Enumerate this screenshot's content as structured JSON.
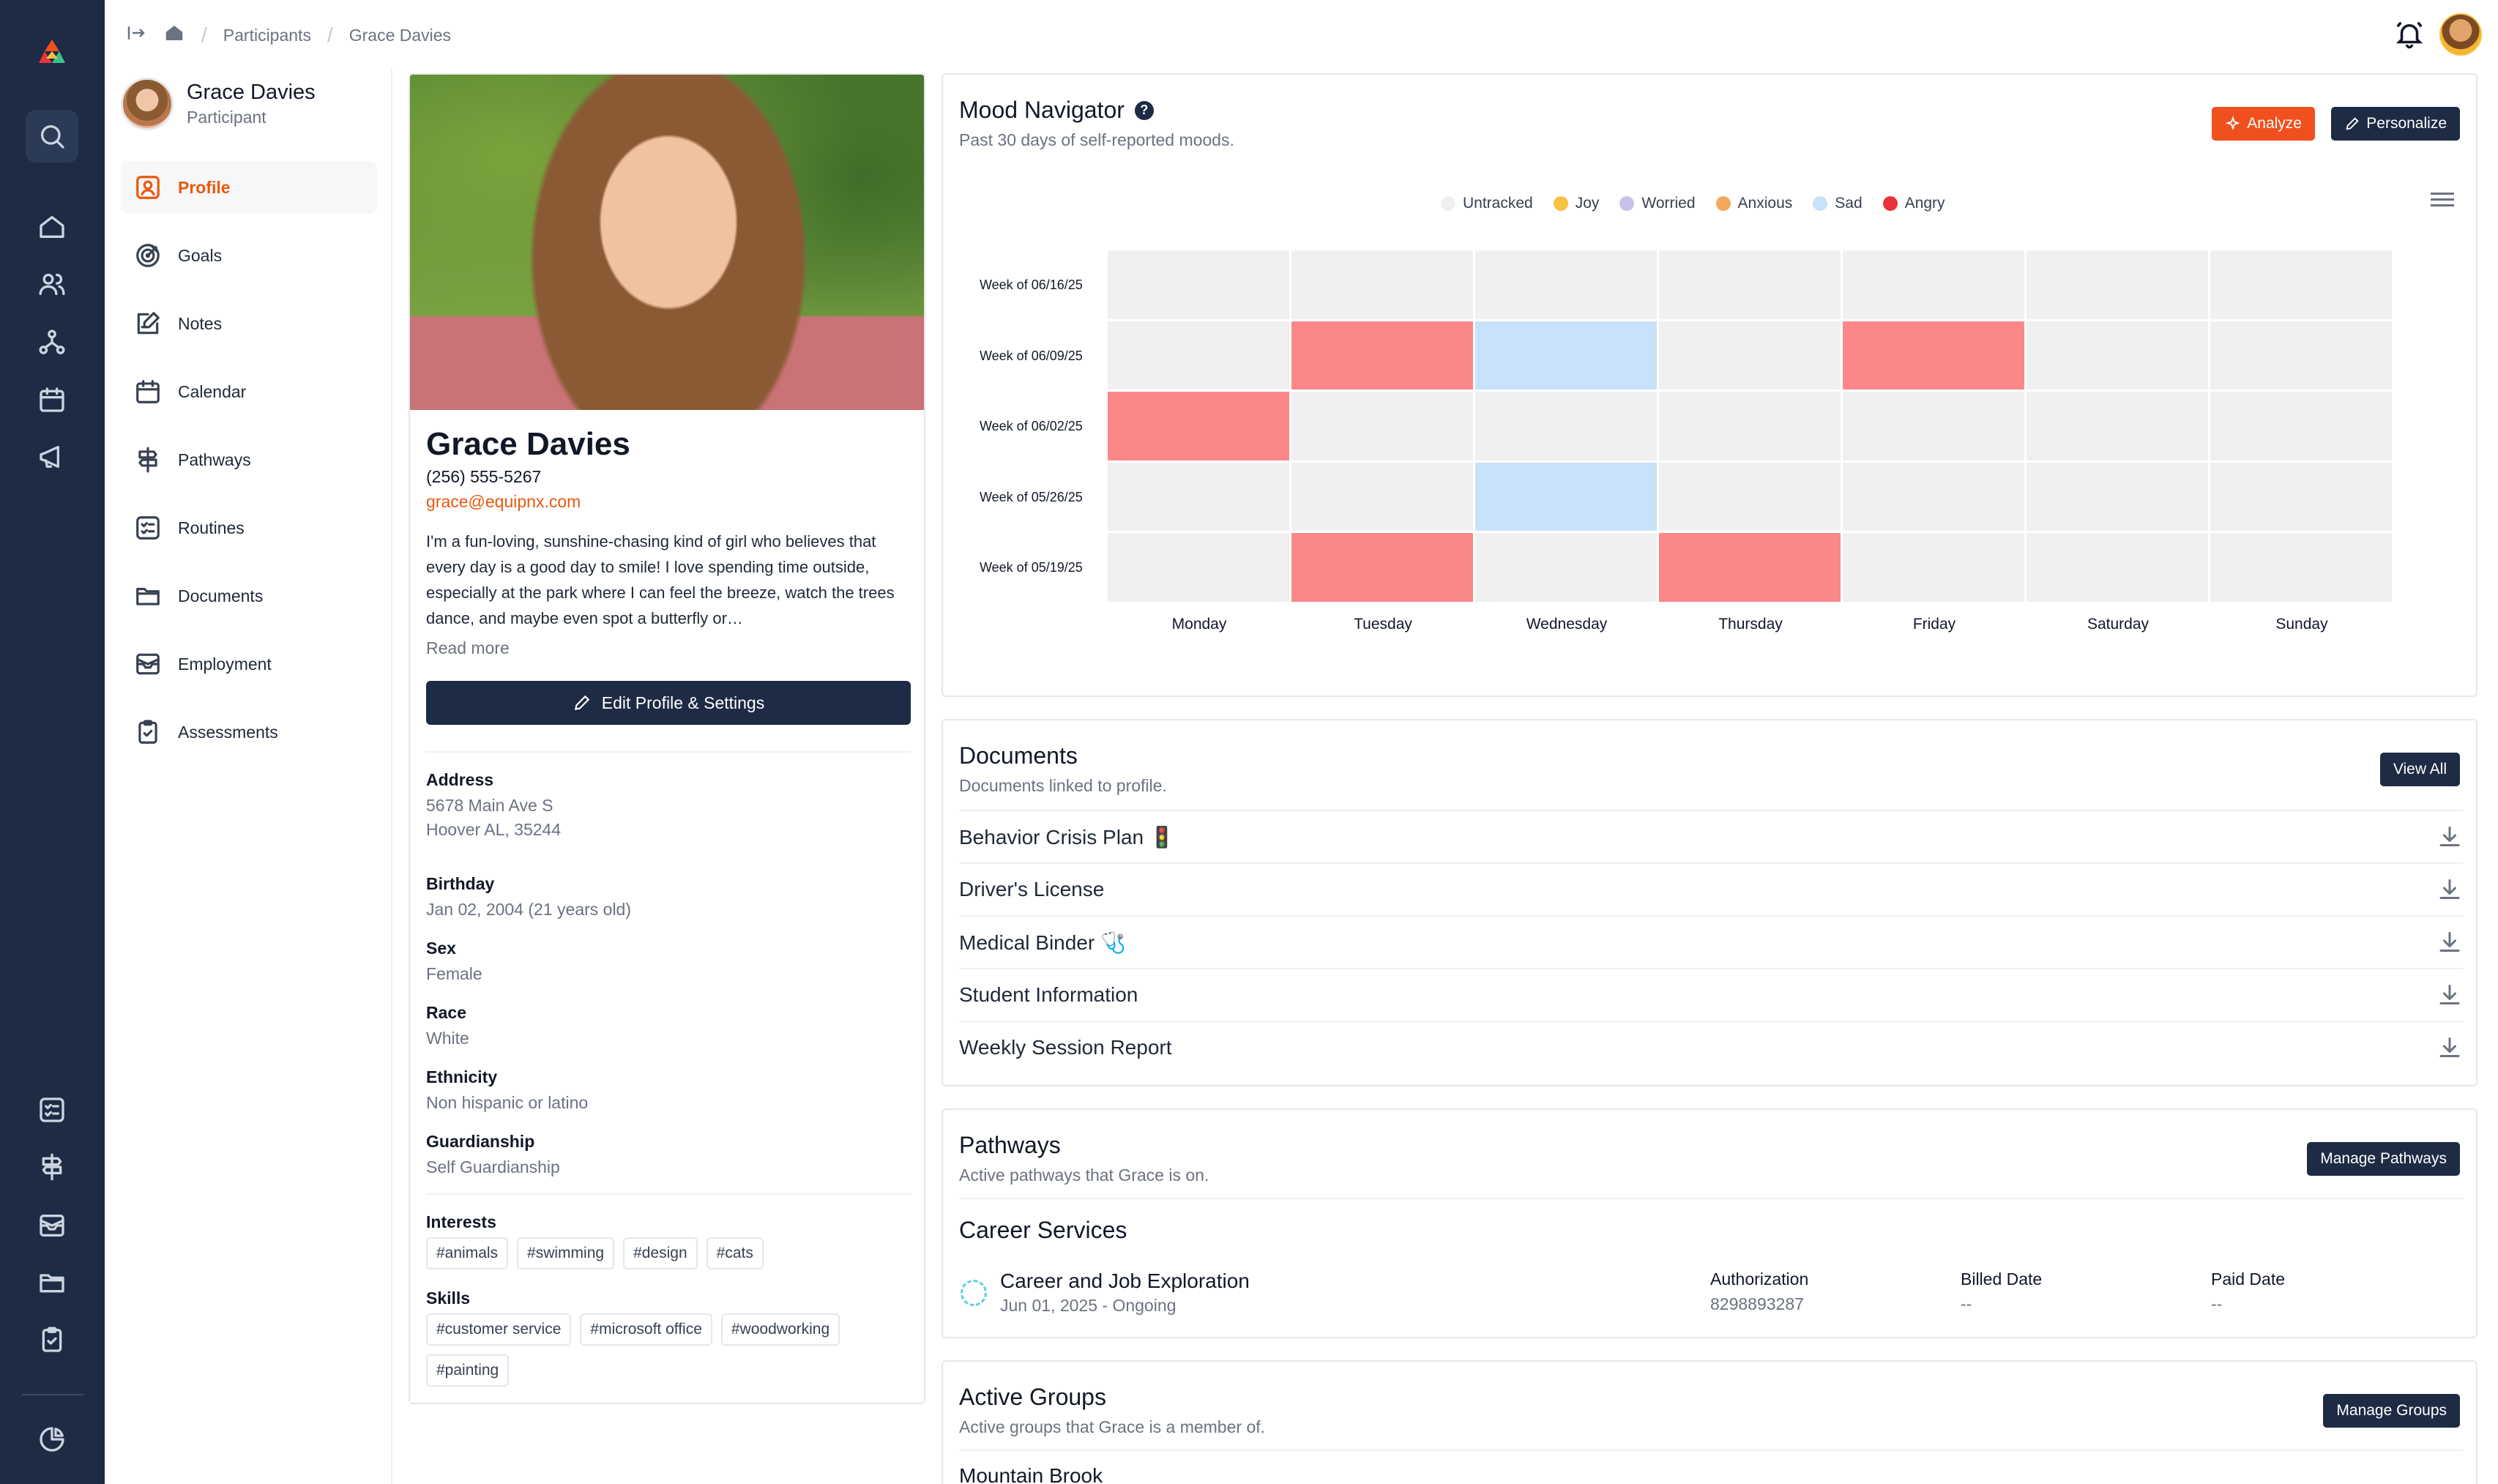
{
  "breadcrumb": {
    "parent": "Participants",
    "current": "Grace Davies"
  },
  "subnav": {
    "user_name": "Grace Davies",
    "user_role": "Participant",
    "items": [
      {
        "label": "Profile",
        "icon": "user-square-icon"
      },
      {
        "label": "Goals",
        "icon": "target-icon"
      },
      {
        "label": "Notes",
        "icon": "note-edit-icon"
      },
      {
        "label": "Calendar",
        "icon": "calendar-icon"
      },
      {
        "label": "Pathways",
        "icon": "signpost-icon"
      },
      {
        "label": "Routines",
        "icon": "checklist-icon"
      },
      {
        "label": "Documents",
        "icon": "folder-icon"
      },
      {
        "label": "Employment",
        "icon": "inbox-icon"
      },
      {
        "label": "Assessments",
        "icon": "clipboard-icon"
      }
    ]
  },
  "profile": {
    "name": "Grace Davies",
    "phone": "(256) 555-5267",
    "email": "grace@equipnx.com",
    "bio": "I'm a fun-loving, sunshine-chasing kind of girl who believes that every day is a good day to smile! I love spending time outside, especially at the park where I can feel the breeze, watch the trees dance, and maybe even spot a butterfly or…",
    "read_more": "Read more",
    "edit_button": "Edit Profile & Settings",
    "address_label": "Address",
    "address_line1": "5678 Main Ave S",
    "address_line2": "Hoover AL, 35244",
    "birthday_label": "Birthday",
    "birthday_value": "Jan 02, 2004 (21 years old)",
    "sex_label": "Sex",
    "sex_value": "Female",
    "race_label": "Race",
    "race_value": "White",
    "ethnicity_label": "Ethnicity",
    "ethnicity_value": "Non hispanic or latino",
    "guardianship_label": "Guardianship",
    "guardianship_value": "Self Guardianship",
    "interests_label": "Interests",
    "interests": [
      "#animals",
      "#swimming",
      "#design",
      "#cats"
    ],
    "skills_label": "Skills",
    "skills": [
      "#customer service",
      "#microsoft office",
      "#woodworking",
      "#painting"
    ]
  },
  "mood": {
    "title": "Mood Navigator",
    "subtitle": "Past 30 days of self-reported moods.",
    "analyze_button": "Analyze",
    "personalize_button": "Personalize"
  },
  "chart_data": {
    "type": "heatmap",
    "title": "Mood Navigator",
    "legend": [
      {
        "name": "Untracked",
        "color": "#f0f0f0"
      },
      {
        "name": "Joy",
        "color": "#f5c242"
      },
      {
        "name": "Worried",
        "color": "#c9c2ea"
      },
      {
        "name": "Anxious",
        "color": "#f5a85c"
      },
      {
        "name": "Sad",
        "color": "#c9e2fb"
      },
      {
        "name": "Angry",
        "color": "#e8333a"
      }
    ],
    "legend_cell_colors": {
      "Untracked": "#f0f0f0",
      "Sad": "#c9e2fb",
      "Angry": "#fb8789"
    },
    "legend_position": "top-center",
    "columns": [
      "Monday",
      "Tuesday",
      "Wednesday",
      "Thursday",
      "Friday",
      "Saturday",
      "Sunday"
    ],
    "rows": [
      "Week of 06/16/25",
      "Week of 06/09/25",
      "Week of 06/02/25",
      "Week of 05/26/25",
      "Week of 05/19/25"
    ],
    "values": [
      [
        "Untracked",
        "Untracked",
        "Untracked",
        "Untracked",
        "Untracked",
        "Untracked",
        "Untracked"
      ],
      [
        "Untracked",
        "Angry",
        "Sad",
        "Untracked",
        "Angry",
        "Untracked",
        "Untracked"
      ],
      [
        "Angry",
        "Untracked",
        "Untracked",
        "Untracked",
        "Untracked",
        "Untracked",
        "Untracked"
      ],
      [
        "Untracked",
        "Untracked",
        "Sad",
        "Untracked",
        "Untracked",
        "Untracked",
        "Untracked"
      ],
      [
        "Untracked",
        "Angry",
        "Untracked",
        "Angry",
        "Untracked",
        "Untracked",
        "Untracked"
      ]
    ]
  },
  "documents": {
    "title": "Documents",
    "subtitle": "Documents linked to profile.",
    "view_all": "View All",
    "items": [
      "Behavior Crisis Plan 🚦",
      "Driver's License",
      "Medical Binder 🩺",
      "Student Information",
      "Weekly Session Report"
    ]
  },
  "pathways": {
    "title": "Pathways",
    "subtitle": "Active pathways that Grace is on.",
    "manage_button": "Manage Pathways",
    "section_title": "Career Services",
    "item_name": "Career and Job Exploration",
    "item_date": "Jun 01, 2025 - Ongoing",
    "authorization_label": "Authorization",
    "authorization_value": "8298893287",
    "billed_label": "Billed Date",
    "billed_value": "--",
    "paid_label": "Paid Date",
    "paid_value": "--"
  },
  "groups": {
    "title": "Active Groups",
    "subtitle": "Active groups that Grace is a member of.",
    "manage_button": "Manage Groups",
    "first_group": "Mountain Brook"
  }
}
